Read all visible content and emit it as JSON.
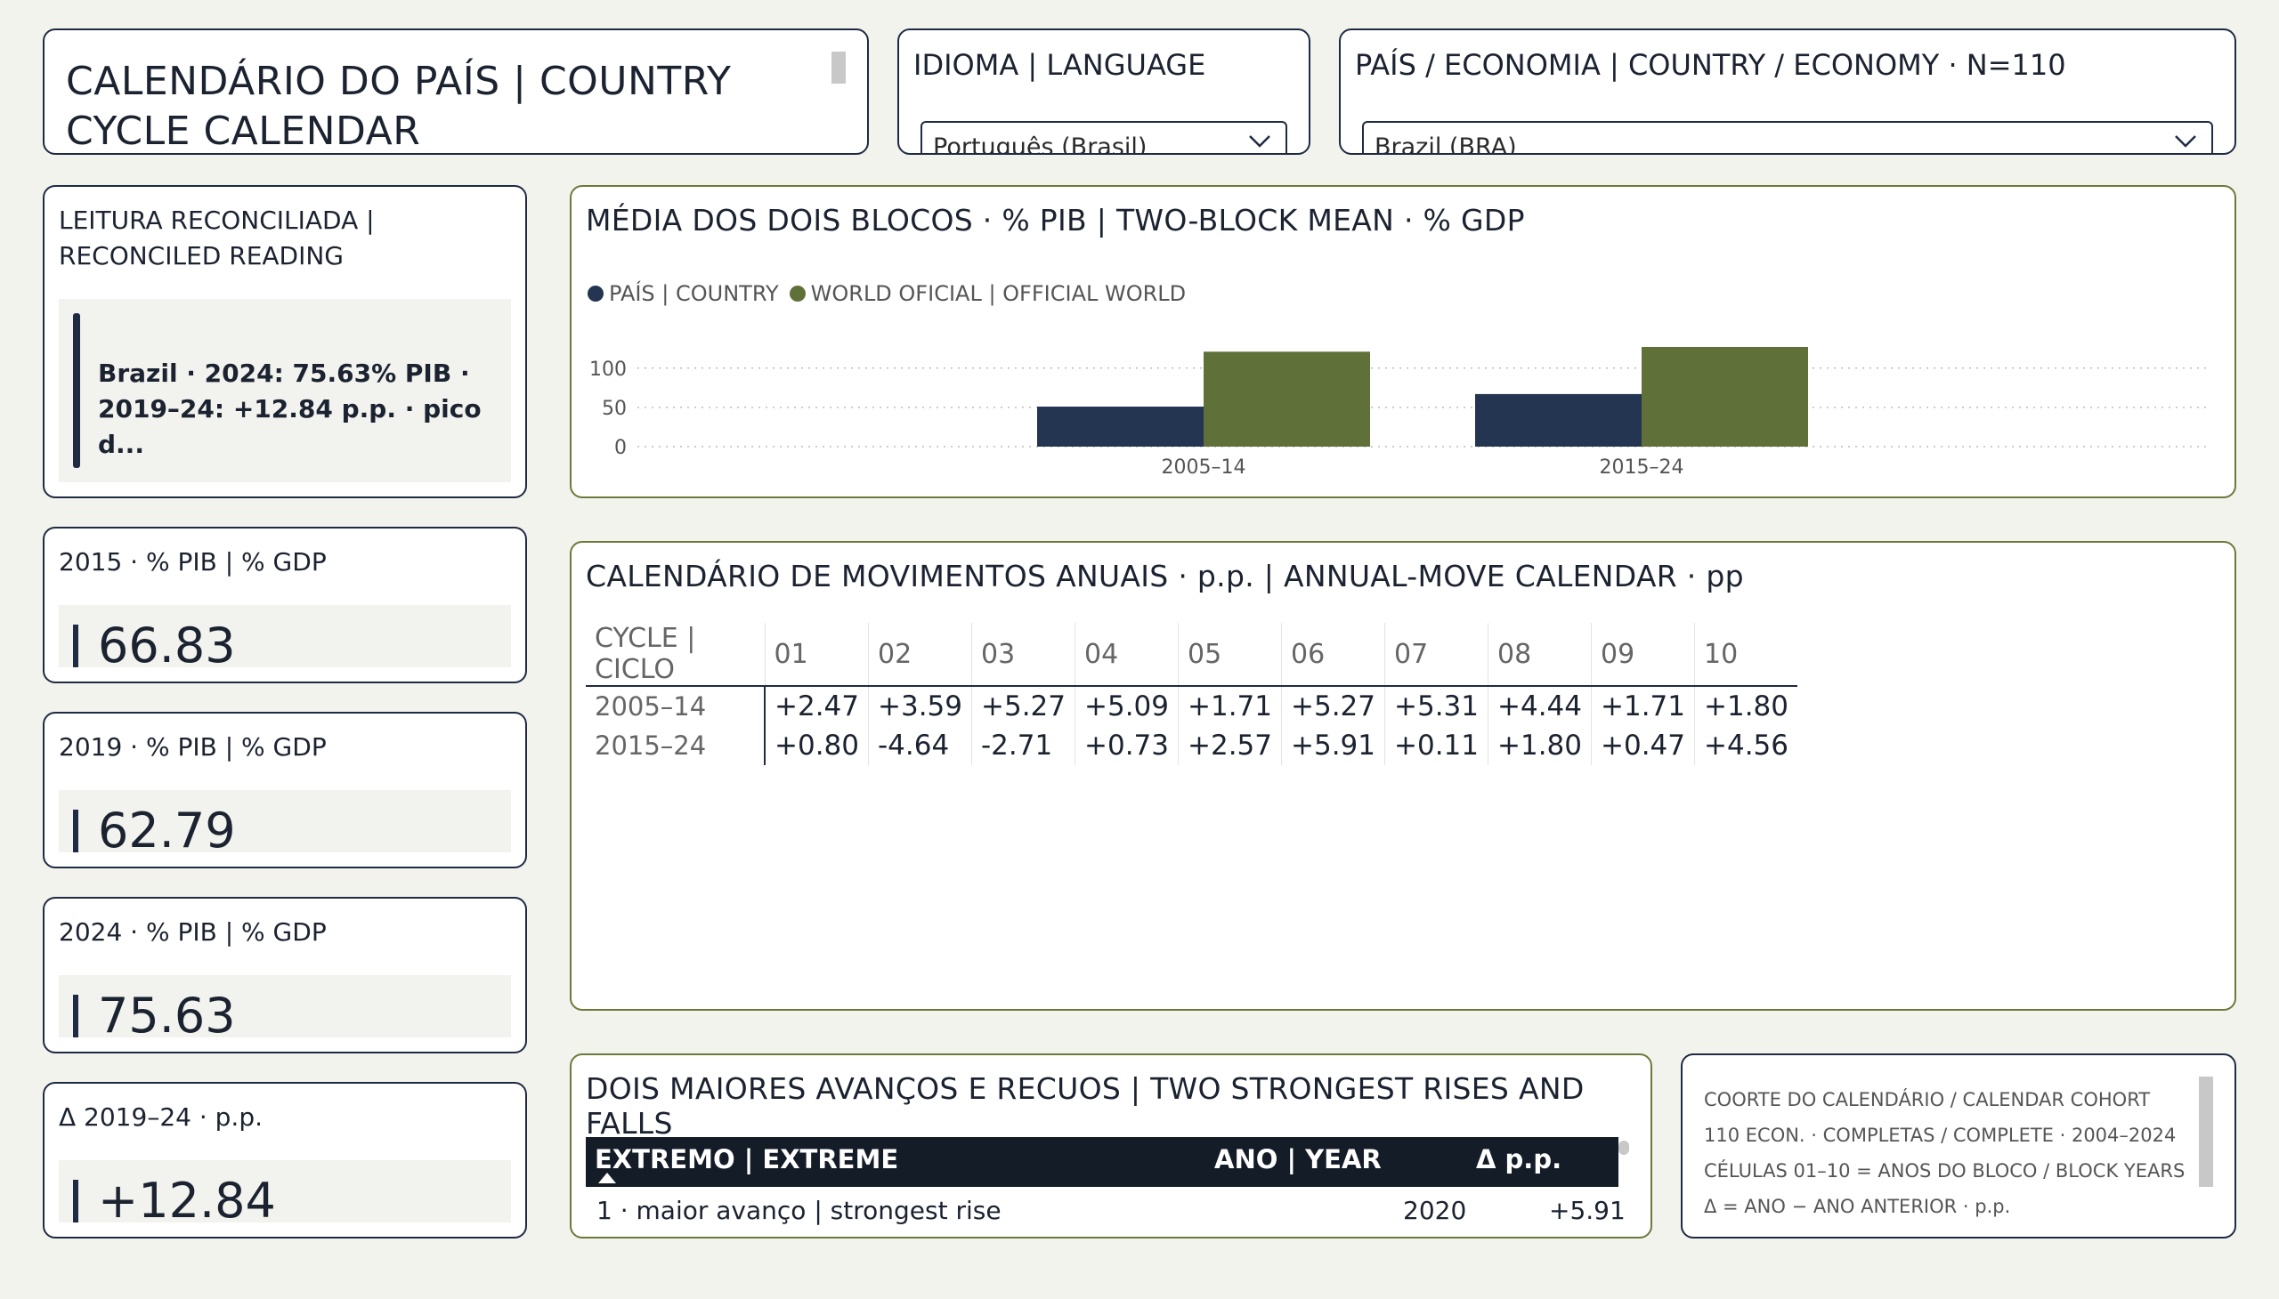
{
  "header": {
    "title": "CALENDÁRIO DO PAÍS | COUNTRY CYCLE CALENDAR",
    "language_label": "IDIOMA | LANGUAGE",
    "language_value": "Português (Brasil)",
    "country_label": "PAÍS / ECONOMIA | COUNTRY / ECONOMY · N=110",
    "country_value": "Brazil (BRA)"
  },
  "reconciled": {
    "label": "LEITURA RECONCILIADA | RECONCILED READING",
    "text": "Brazil · 2024: 75.63% PIB · 2019–24: +12.84 p.p. · pico d..."
  },
  "kpis": [
    {
      "label": "2015 · % PIB | % GDP",
      "value": "66.83"
    },
    {
      "label": "2019 · % PIB | % GDP",
      "value": "62.79"
    },
    {
      "label": "2024 · % PIB | % GDP",
      "value": "75.63"
    },
    {
      "label": "Δ 2019–24 · p.p.",
      "value": "+12.84"
    }
  ],
  "chart": {
    "title": "MÉDIA DOS DOIS BLOCOS · % PIB | TWO-BLOCK MEAN · % GDP",
    "legend": [
      "PAÍS | COUNTRY",
      "WORLD OFICIAL | OFFICIAL WORLD"
    ],
    "colors": [
      "#243551",
      "#5f7038"
    ]
  },
  "chart_data": {
    "type": "bar",
    "categories": [
      "2005–14",
      "2015–24"
    ],
    "series": [
      {
        "name": "PAÍS | COUNTRY",
        "values": [
          51,
          67
        ]
      },
      {
        "name": "WORLD OFICIAL | OFFICIAL WORLD",
        "values": [
          121,
          133
        ]
      }
    ],
    "yticks": [
      0,
      50,
      100
    ],
    "ylim": [
      0,
      140
    ],
    "grid": true,
    "legend_position": "top-left"
  },
  "calendar": {
    "title": "CALENDÁRIO DE MOVIMENTOS ANUAIS · p.p. | ANNUAL-MOVE CALENDAR · pp",
    "corner": "CYCLE | CICLO",
    "columns": [
      "01",
      "02",
      "03",
      "04",
      "05",
      "06",
      "07",
      "08",
      "09",
      "10"
    ],
    "rows": [
      {
        "label": "2005–14",
        "cells": [
          "+2.47",
          "+3.59",
          "+5.27",
          "+5.09",
          "+1.71",
          "+5.27",
          "+5.31",
          "+4.44",
          "+1.71",
          "+1.80"
        ]
      },
      {
        "label": "2015–24",
        "cells": [
          "+0.80",
          "-4.64",
          "-2.71",
          "+0.73",
          "+2.57",
          "+5.91",
          "+0.11",
          "+1.80",
          "+0.47",
          "+4.56"
        ]
      }
    ]
  },
  "extremes": {
    "title": "DOIS MAIORES AVANÇOS E RECUOS | TWO STRONGEST RISES AND FALLS",
    "headers": [
      "EXTREMO | EXTREME",
      "ANO | YEAR",
      "Δ p.p."
    ],
    "rows": [
      {
        "extreme": "1 · maior avanço | strongest rise",
        "year": "2020",
        "delta": "+5.91"
      }
    ]
  },
  "cohort": {
    "lines": [
      "COORTE DO CALENDÁRIO / CALENDAR COHORT",
      "110 ECON. · COMPLETAS / COMPLETE · 2004–2024",
      "CÉLULAS 01–10 = ANOS DO BLOCO / BLOCK YEARS",
      "Δ = ANO − ANO ANTERIOR · p.p."
    ]
  }
}
